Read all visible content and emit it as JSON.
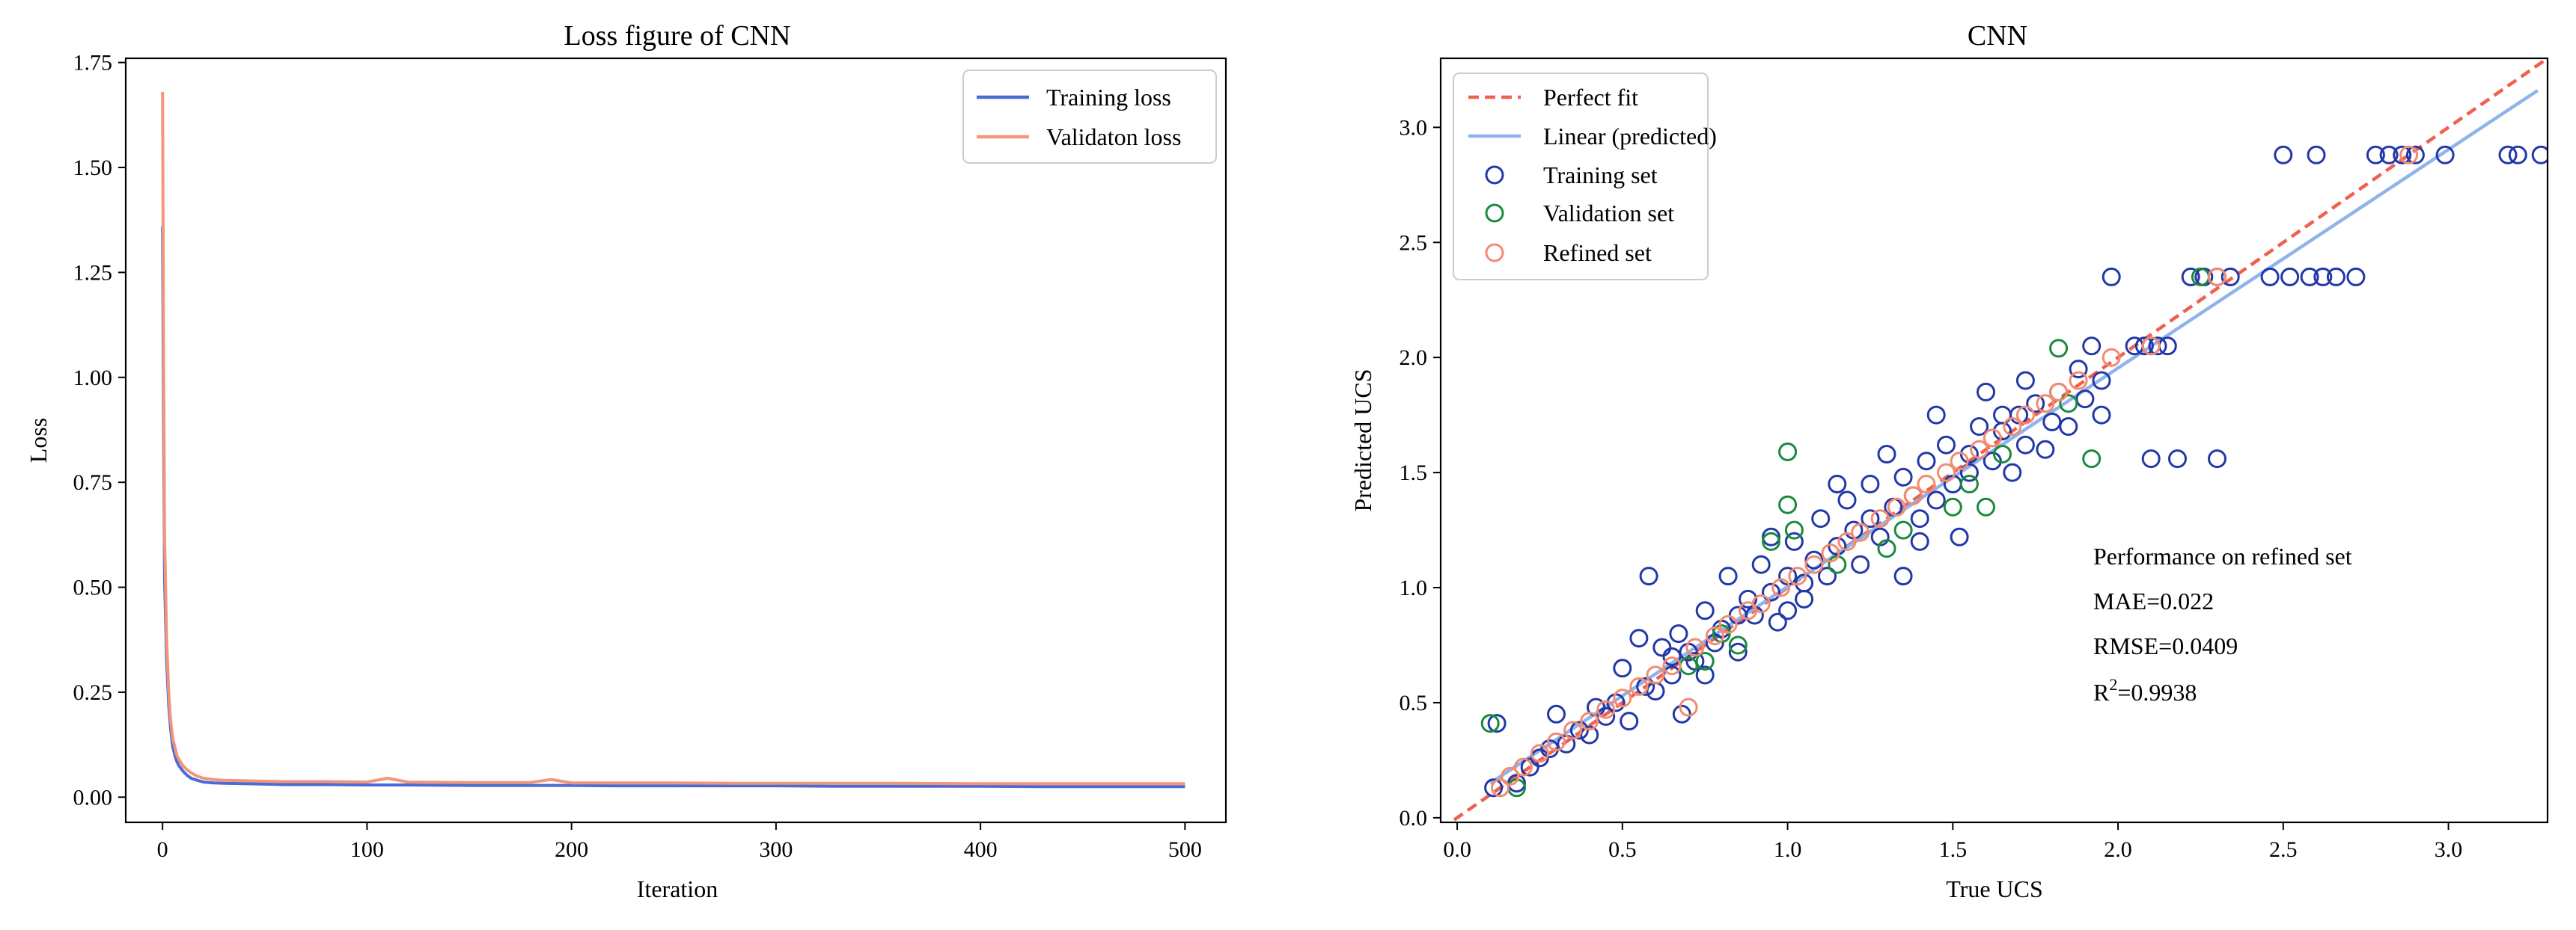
{
  "chart_data": [
    {
      "type": "line",
      "title": "Loss figure of CNN",
      "xlabel": "Iteration",
      "ylabel": "Loss",
      "xlim": [
        -18,
        520
      ],
      "ylim": [
        -0.06,
        1.76
      ],
      "xticks": [
        0,
        100,
        200,
        300,
        400,
        500
      ],
      "xtick_labels": [
        "0",
        "100",
        "200",
        "300",
        "400",
        "500"
      ],
      "yticks": [
        0,
        0.25,
        0.5,
        0.75,
        1.0,
        1.25,
        1.5,
        1.75
      ],
      "ytick_labels": [
        "0.00",
        "0.25",
        "0.50",
        "0.75",
        "1.00",
        "1.25",
        "1.50",
        "1.75"
      ],
      "legend_position": "top-right",
      "series": [
        {
          "name": "Training loss",
          "color": "#4a6bd6",
          "x": [
            0,
            0.5,
            1,
            2,
            3,
            4,
            5,
            6,
            7,
            8,
            10,
            12,
            14,
            17,
            20,
            25,
            30,
            40,
            50,
            60,
            80,
            100,
            120,
            150,
            180,
            200,
            220,
            250,
            280,
            300,
            330,
            360,
            400,
            430,
            460,
            500
          ],
          "values": [
            1.36,
            0.9,
            0.52,
            0.33,
            0.22,
            0.16,
            0.12,
            0.1,
            0.085,
            0.075,
            0.062,
            0.052,
            0.045,
            0.04,
            0.036,
            0.034,
            0.033,
            0.032,
            0.031,
            0.03,
            0.03,
            0.029,
            0.029,
            0.028,
            0.028,
            0.028,
            0.027,
            0.027,
            0.027,
            0.027,
            0.026,
            0.026,
            0.026,
            0.025,
            0.025,
            0.025
          ]
        },
        {
          "name": "Validaton loss",
          "color": "#f4957a",
          "x": [
            0,
            0.5,
            1,
            2,
            3,
            4,
            5,
            6,
            7,
            8,
            10,
            12,
            14,
            17,
            20,
            25,
            30,
            40,
            50,
            60,
            80,
            100,
            110,
            120,
            150,
            180,
            190,
            200,
            220,
            250,
            280,
            300,
            330,
            360,
            400,
            430,
            460,
            500
          ],
          "values": [
            1.68,
            1.1,
            0.62,
            0.38,
            0.25,
            0.18,
            0.14,
            0.12,
            0.1,
            0.09,
            0.075,
            0.065,
            0.058,
            0.05,
            0.045,
            0.042,
            0.04,
            0.039,
            0.038,
            0.037,
            0.037,
            0.036,
            0.045,
            0.036,
            0.035,
            0.035,
            0.042,
            0.034,
            0.034,
            0.034,
            0.033,
            0.033,
            0.033,
            0.033,
            0.032,
            0.032,
            0.032,
            0.032
          ]
        }
      ]
    },
    {
      "type": "scatter",
      "title": "CNN",
      "xlabel": "True UCS",
      "ylabel": "Predicted UCS",
      "xlim": [
        -0.05,
        3.3
      ],
      "ylim": [
        -0.02,
        3.3
      ],
      "xticks": [
        0,
        0.5,
        1.0,
        1.5,
        2.0,
        2.5,
        3.0
      ],
      "xtick_labels": [
        "0.0",
        "0.5",
        "1.0",
        "1.5",
        "2.0",
        "2.5",
        "3.0"
      ],
      "yticks": [
        0,
        0.5,
        1.0,
        1.5,
        2.0,
        2.5,
        3.0
      ],
      "ytick_labels": [
        "0.0",
        "0.5",
        "1.0",
        "1.5",
        "2.0",
        "2.5",
        "3.0"
      ],
      "legend_position": "top-left",
      "lines": [
        {
          "name": "Perfect fit",
          "color": "#f0604e",
          "dashed": true,
          "x": [
            -0.05,
            3.3
          ],
          "y": [
            -0.05,
            3.3
          ]
        },
        {
          "name": "Linear (predicted)",
          "color": "#8fb4ec",
          "dashed": false,
          "x": [
            0.1,
            3.27
          ],
          "y": [
            0.15,
            3.16
          ]
        }
      ],
      "series": [
        {
          "name": "Training set",
          "color": "#2338a8",
          "points": [
            [
              0.11,
              0.13
            ],
            [
              0.18,
              0.15
            ],
            [
              0.22,
              0.22
            ],
            [
              0.28,
              0.3
            ],
            [
              0.3,
              0.45
            ],
            [
              0.33,
              0.32
            ],
            [
              0.37,
              0.38
            ],
            [
              0.4,
              0.36
            ],
            [
              0.42,
              0.48
            ],
            [
              0.45,
              0.44
            ],
            [
              0.48,
              0.5
            ],
            [
              0.5,
              0.65
            ],
            [
              0.52,
              0.42
            ],
            [
              0.55,
              0.78
            ],
            [
              0.57,
              0.57
            ],
            [
              0.6,
              0.55
            ],
            [
              0.62,
              0.74
            ],
            [
              0.65,
              0.62
            ],
            [
              0.67,
              0.8
            ],
            [
              0.68,
              0.45
            ],
            [
              0.7,
              0.72
            ],
            [
              0.72,
              0.68
            ],
            [
              0.75,
              0.9
            ],
            [
              0.78,
              0.76
            ],
            [
              0.8,
              0.82
            ],
            [
              0.82,
              1.05
            ],
            [
              0.85,
              0.72
            ],
            [
              0.88,
              0.95
            ],
            [
              0.9,
              0.88
            ],
            [
              0.92,
              1.1
            ],
            [
              0.95,
              0.98
            ],
            [
              0.97,
              0.85
            ],
            [
              1.0,
              1.05
            ],
            [
              1.02,
              1.2
            ],
            [
              1.05,
              0.95
            ],
            [
              1.08,
              1.12
            ],
            [
              1.1,
              1.3
            ],
            [
              1.12,
              1.05
            ],
            [
              1.15,
              1.18
            ],
            [
              1.18,
              1.38
            ],
            [
              1.2,
              1.25
            ],
            [
              1.22,
              1.1
            ],
            [
              1.25,
              1.45
            ],
            [
              1.28,
              1.22
            ],
            [
              1.3,
              1.58
            ],
            [
              1.32,
              1.35
            ],
            [
              1.35,
              1.05
            ],
            [
              1.38,
              1.4
            ],
            [
              1.4,
              1.3
            ],
            [
              1.42,
              1.55
            ],
            [
              1.45,
              1.38
            ],
            [
              1.48,
              1.62
            ],
            [
              1.5,
              1.45
            ],
            [
              1.52,
              1.22
            ],
            [
              1.55,
              1.5
            ],
            [
              1.58,
              1.7
            ],
            [
              1.6,
              1.85
            ],
            [
              1.62,
              1.55
            ],
            [
              1.65,
              1.68
            ],
            [
              1.68,
              1.5
            ],
            [
              1.7,
              1.75
            ],
            [
              1.72,
              1.62
            ],
            [
              1.75,
              1.8
            ],
            [
              1.78,
              1.6
            ],
            [
              1.8,
              1.72
            ],
            [
              1.82,
              1.85
            ],
            [
              1.85,
              1.7
            ],
            [
              1.88,
              1.95
            ],
            [
              1.9,
              1.82
            ],
            [
              1.92,
              2.05
            ],
            [
              1.95,
              1.9
            ],
            [
              1.98,
              2.35
            ],
            [
              2.05,
              2.05
            ],
            [
              2.08,
              2.05
            ],
            [
              2.1,
              2.05
            ],
            [
              2.12,
              2.05
            ],
            [
              2.15,
              2.05
            ],
            [
              2.1,
              1.56
            ],
            [
              2.18,
              1.56
            ],
            [
              2.3,
              1.56
            ],
            [
              1.95,
              1.75
            ],
            [
              2.22,
              2.35
            ],
            [
              2.26,
              2.35
            ],
            [
              2.3,
              2.35
            ],
            [
              2.34,
              2.35
            ],
            [
              2.46,
              2.35
            ],
            [
              2.52,
              2.35
            ],
            [
              2.58,
              2.35
            ],
            [
              2.62,
              2.35
            ],
            [
              2.66,
              2.35
            ],
            [
              2.72,
              2.35
            ],
            [
              2.5,
              2.88
            ],
            [
              2.6,
              2.88
            ],
            [
              2.78,
              2.88
            ],
            [
              2.82,
              2.88
            ],
            [
              2.86,
              2.88
            ],
            [
              2.9,
              2.88
            ],
            [
              2.99,
              2.88
            ],
            [
              3.18,
              2.88
            ],
            [
              3.21,
              2.88
            ],
            [
              3.28,
              2.88
            ],
            [
              0.58,
              1.05
            ],
            [
              0.12,
              0.41
            ],
            [
              0.25,
              0.26
            ],
            [
              0.65,
              0.7
            ],
            [
              0.85,
              0.88
            ],
            [
              1.45,
              1.75
            ],
            [
              1.72,
              1.9
            ],
            [
              1.05,
              1.02
            ],
            [
              1.25,
              1.3
            ],
            [
              1.55,
              1.58
            ],
            [
              0.95,
              1.22
            ],
            [
              1.15,
              1.45
            ],
            [
              1.35,
              1.48
            ],
            [
              1.65,
              1.75
            ],
            [
              0.75,
              0.62
            ],
            [
              1.0,
              0.9
            ],
            [
              1.4,
              1.2
            ]
          ]
        },
        {
          "name": "Validation set",
          "color": "#1a8a3c",
          "points": [
            [
              0.1,
              0.41
            ],
            [
              0.18,
              0.13
            ],
            [
              0.7,
              0.66
            ],
            [
              0.75,
              0.68
            ],
            [
              0.8,
              0.8
            ],
            [
              1.0,
              1.59
            ],
            [
              1.0,
              1.36
            ],
            [
              0.95,
              1.2
            ],
            [
              1.02,
              1.25
            ],
            [
              1.3,
              1.17
            ],
            [
              1.35,
              1.25
            ],
            [
              1.5,
              1.35
            ],
            [
              1.55,
              1.45
            ],
            [
              1.6,
              1.35
            ],
            [
              1.65,
              1.58
            ],
            [
              1.82,
              2.04
            ],
            [
              1.85,
              1.8
            ],
            [
              1.92,
              1.56
            ],
            [
              2.25,
              2.35
            ],
            [
              0.85,
              0.75
            ],
            [
              1.15,
              1.1
            ]
          ]
        },
        {
          "name": "Refined set",
          "color": "#f28b72",
          "points": [
            [
              0.13,
              0.13
            ],
            [
              0.16,
              0.18
            ],
            [
              0.2,
              0.22
            ],
            [
              0.25,
              0.28
            ],
            [
              0.3,
              0.33
            ],
            [
              0.35,
              0.38
            ],
            [
              0.4,
              0.42
            ],
            [
              0.45,
              0.47
            ],
            [
              0.5,
              0.52
            ],
            [
              0.55,
              0.57
            ],
            [
              0.6,
              0.62
            ],
            [
              0.65,
              0.66
            ],
            [
              0.7,
              0.48
            ],
            [
              0.72,
              0.74
            ],
            [
              0.78,
              0.79
            ],
            [
              0.82,
              0.84
            ],
            [
              0.88,
              0.9
            ],
            [
              0.92,
              0.93
            ],
            [
              0.98,
              1.0
            ],
            [
              1.03,
              1.05
            ],
            [
              1.08,
              1.1
            ],
            [
              1.13,
              1.15
            ],
            [
              1.18,
              1.2
            ],
            [
              1.22,
              1.24
            ],
            [
              1.28,
              1.3
            ],
            [
              1.33,
              1.35
            ],
            [
              1.38,
              1.4
            ],
            [
              1.42,
              1.45
            ],
            [
              1.48,
              1.5
            ],
            [
              1.52,
              1.55
            ],
            [
              1.58,
              1.6
            ],
            [
              1.62,
              1.65
            ],
            [
              1.68,
              1.7
            ],
            [
              1.72,
              1.75
            ],
            [
              1.78,
              1.8
            ],
            [
              1.82,
              1.85
            ],
            [
              1.88,
              1.9
            ],
            [
              1.98,
              2.0
            ],
            [
              2.1,
              2.05
            ],
            [
              2.3,
              2.35
            ],
            [
              2.88,
              2.88
            ]
          ]
        }
      ],
      "annotation": {
        "heading": "Performance on refined set",
        "mae": "MAE=0.022",
        "rmse": "RMSE=0.0409",
        "r2_prefix": "R",
        "r2_sup": "2",
        "r2_value": "=0.9938"
      }
    }
  ]
}
